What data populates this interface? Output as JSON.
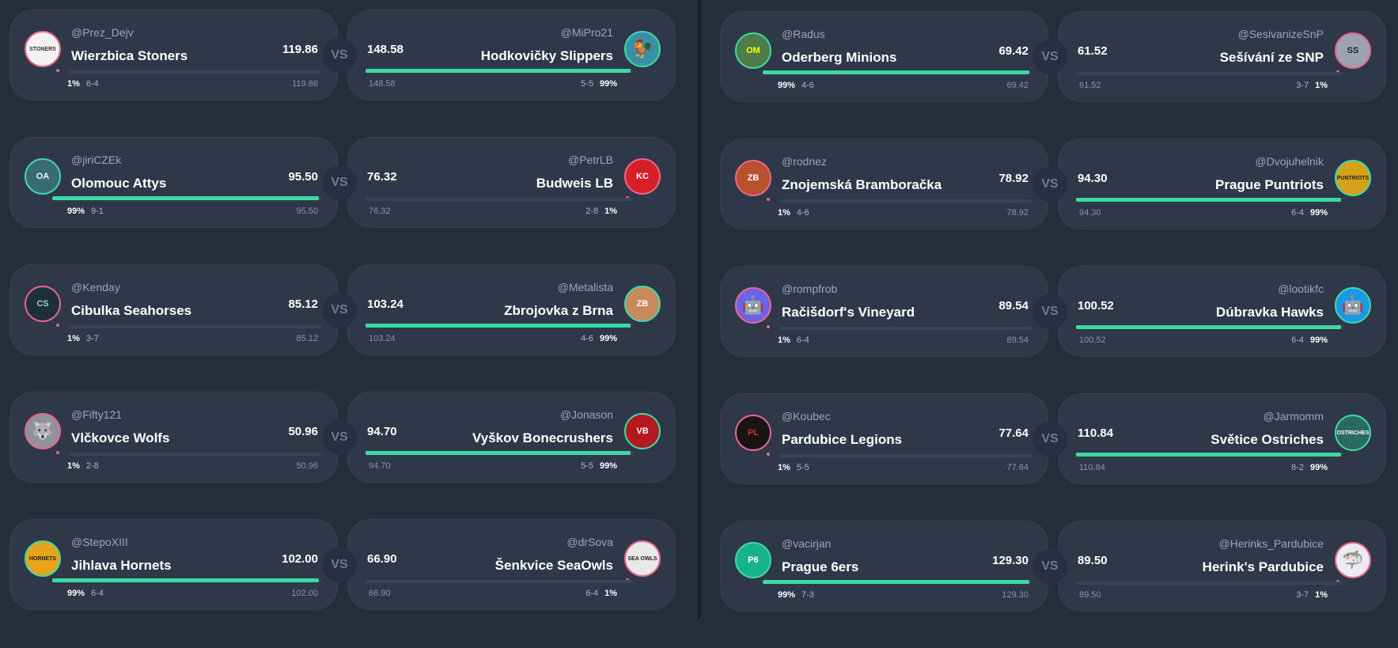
{
  "colors": {
    "win": "#3ed9a3",
    "loss": "#e8668f",
    "background": "#252d3b",
    "card": "#2f3848"
  },
  "vs_label": "VS",
  "left_column": [
    {
      "home": {
        "user": "@Prez_Dejv",
        "team": "Wierzbica Stoners",
        "score": "119.86",
        "record": "6-4",
        "prob": "1%",
        "points": "119.86",
        "prob_value": 1,
        "logo": "STONERS",
        "logo_color": "#f2f2f2",
        "logo_text_color": "#333",
        "win": false
      },
      "away": {
        "user": "@MiPro21",
        "team": "Hodkovičky Slippers",
        "score": "148.58",
        "record": "5-5",
        "prob": "99%",
        "points": "148.58",
        "prob_value": 99,
        "logo": "🐓",
        "logo_color": "#3b8fa8",
        "logo_text_color": "#fff",
        "win": true
      }
    },
    {
      "home": {
        "user": "@jiriCZEk",
        "team": "Olomouc Attys",
        "score": "95.50",
        "record": "9-1",
        "prob": "99%",
        "points": "95.50",
        "prob_value": 99,
        "logo": "OA",
        "logo_color": "#3a6b73",
        "logo_text_color": "#dfe",
        "win": true
      },
      "away": {
        "user": "@PetrLB",
        "team": "Budweis LB",
        "score": "76.32",
        "record": "2-8",
        "prob": "1%",
        "points": "76.32",
        "prob_value": 1,
        "logo": "KC",
        "logo_color": "#d81f27",
        "logo_text_color": "#fff",
        "win": false
      }
    },
    {
      "home": {
        "user": "@Kenday",
        "team": "Cibulka Seahorses",
        "score": "85.12",
        "record": "3-7",
        "prob": "1%",
        "points": "85.12",
        "prob_value": 1,
        "logo": "CS",
        "logo_color": "#1d2f3a",
        "logo_text_color": "#9cc",
        "win": false
      },
      "away": {
        "user": "@Metalista",
        "team": "Zbrojovka z Brna",
        "score": "103.24",
        "record": "4-6",
        "prob": "99%",
        "points": "103.24",
        "prob_value": 99,
        "logo": "ZB",
        "logo_color": "#c98a5a",
        "logo_text_color": "#fff",
        "win": true
      }
    },
    {
      "home": {
        "user": "@Fifty121",
        "team": "Vlčkovce Wolfs",
        "score": "50.96",
        "record": "2-8",
        "prob": "1%",
        "points": "50.96",
        "prob_value": 1,
        "logo": "🐺",
        "logo_color": "#8f9298",
        "logo_text_color": "#fff",
        "win": false
      },
      "away": {
        "user": "@Jonason",
        "team": "Vyškov Bonecrushers",
        "score": "94.70",
        "record": "5-5",
        "prob": "99%",
        "points": "94.70",
        "prob_value": 99,
        "logo": "VB",
        "logo_color": "#b3191f",
        "logo_text_color": "#fff",
        "win": true
      }
    },
    {
      "home": {
        "user": "@StepoXIII",
        "team": "Jihlava Hornets",
        "score": "102.00",
        "record": "6-4",
        "prob": "99%",
        "points": "102.00",
        "prob_value": 99,
        "logo": "HORNETS",
        "logo_color": "#e7a51b",
        "logo_text_color": "#1a1a1a",
        "win": true
      },
      "away": {
        "user": "@drSova",
        "team": "Šenkvice SeaOwls",
        "score": "66.90",
        "record": "6-4",
        "prob": "1%",
        "points": "66.90",
        "prob_value": 1,
        "logo": "SEA OWLS",
        "logo_color": "#e9e9e9",
        "logo_text_color": "#222",
        "win": false
      }
    }
  ],
  "right_column": [
    {
      "home": {
        "user": "@Radus",
        "team": "Oderberg Minions",
        "score": "69.42",
        "record": "4-6",
        "prob": "99%",
        "points": "69.42",
        "prob_value": 99,
        "logo": "OM",
        "logo_color": "#4c7d4a",
        "logo_text_color": "#ff0",
        "win": true
      },
      "away": {
        "user": "@SesivanizeSnP",
        "team": "Sešívání ze SNP",
        "score": "61.52",
        "record": "3-7",
        "prob": "1%",
        "points": "61.52",
        "prob_value": 1,
        "logo": "SS",
        "logo_color": "#9aa3b0",
        "logo_text_color": "#223",
        "win": false
      }
    },
    {
      "home": {
        "user": "@rodnez",
        "team": "Znojemská Bramboračka",
        "score": "78.92",
        "record": "4-6",
        "prob": "1%",
        "points": "78.92",
        "prob_value": 1,
        "logo": "ZB",
        "logo_color": "#b8522e",
        "logo_text_color": "#fff",
        "win": false
      },
      "away": {
        "user": "@Dvojuhelnik",
        "team": "Prague Puntriots",
        "score": "94.30",
        "record": "6-4",
        "prob": "99%",
        "points": "94.30",
        "prob_value": 99,
        "logo": "PUNTRIOTS",
        "logo_color": "#d6a21b",
        "logo_text_color": "#222",
        "win": true
      }
    },
    {
      "home": {
        "user": "@rompfrob",
        "team": "Račišdorf's Vineyard",
        "score": "89.54",
        "record": "6-4",
        "prob": "1%",
        "points": "89.54",
        "prob_value": 1,
        "logo": "🤖",
        "logo_color": "#6d63e8",
        "logo_text_color": "#fff",
        "win": false
      },
      "away": {
        "user": "@lootikfc",
        "team": "Dúbravka Hawks",
        "score": "100.52",
        "record": "6-4",
        "prob": "99%",
        "points": "100.52",
        "prob_value": 99,
        "logo": "🤖",
        "logo_color": "#1d97e8",
        "logo_text_color": "#fff",
        "win": true
      }
    },
    {
      "home": {
        "user": "@Koubec",
        "team": "Pardubice Legions",
        "score": "77.64",
        "record": "5-5",
        "prob": "1%",
        "points": "77.64",
        "prob_value": 1,
        "logo": "PL",
        "logo_color": "#1a1414",
        "logo_text_color": "#c33",
        "win": false
      },
      "away": {
        "user": "@Jarmomm",
        "team": "Světice Ostriches",
        "score": "110.84",
        "record": "8-2",
        "prob": "99%",
        "points": "110.84",
        "prob_value": 99,
        "logo": "OSTRICHES",
        "logo_color": "#2a6a60",
        "logo_text_color": "#fff",
        "win": true
      }
    },
    {
      "home": {
        "user": "@vacirjan",
        "team": "Prague 6ers",
        "score": "129.30",
        "record": "7-3",
        "prob": "99%",
        "points": "129.30",
        "prob_value": 99,
        "logo": "P6",
        "logo_color": "#19b38a",
        "logo_text_color": "#fff",
        "win": true
      },
      "away": {
        "user": "@Herinks_Pardubice",
        "team": "Herink's Pardubice",
        "score": "89.50",
        "record": "3-7",
        "prob": "1%",
        "points": "89.50",
        "prob_value": 1,
        "logo": "🦈",
        "logo_color": "#ecebf0",
        "logo_text_color": "#1a6fb5",
        "win": false
      }
    }
  ]
}
